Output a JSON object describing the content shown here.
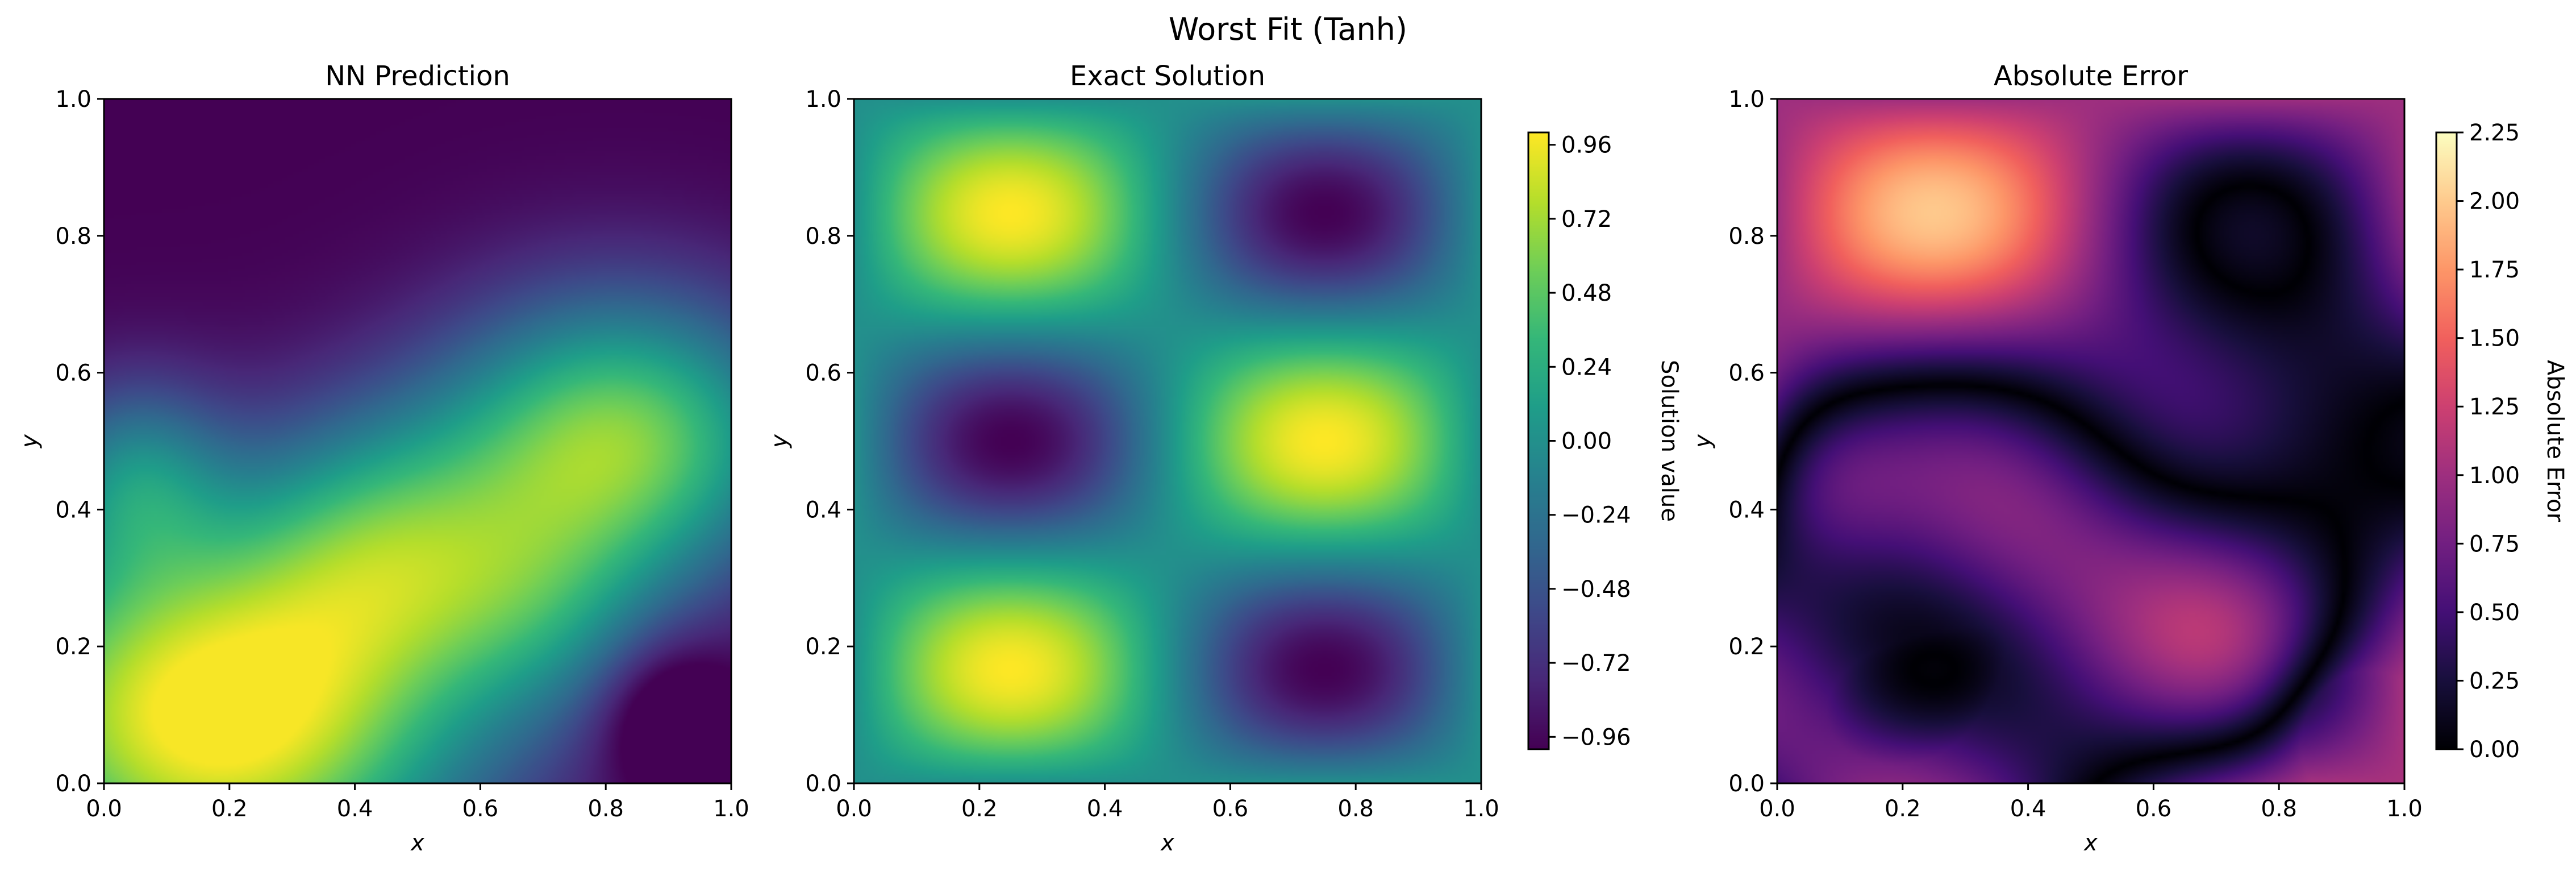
{
  "figure": {
    "title": "Worst Fit (Tanh)"
  },
  "chart_data": [
    {
      "type": "heatmap",
      "title": "NN Prediction",
      "xlabel": "x",
      "ylabel": "y",
      "xlim": [
        0,
        1
      ],
      "ylim": [
        0,
        1
      ],
      "x_ticks": [
        "0.0",
        "0.2",
        "0.4",
        "0.6",
        "0.8",
        "1.0"
      ],
      "y_ticks": [
        "0.0",
        "0.2",
        "0.4",
        "0.6",
        "0.8",
        "1.0"
      ],
      "colormap": "viridis",
      "value_range": [
        -0.96,
        0.96
      ],
      "features": [
        {
          "x": 0.2,
          "y": 0.12,
          "value": 0.96
        },
        {
          "x": 0.8,
          "y": 0.5,
          "value": 0.6
        },
        {
          "x": 0.4,
          "y": 0.85,
          "value": -1.0
        },
        {
          "x": 0.92,
          "y": 0.08,
          "value": -0.75
        }
      ]
    },
    {
      "type": "heatmap",
      "title": "Exact Solution",
      "xlabel": "x",
      "ylabel": "y",
      "xlim": [
        0,
        1
      ],
      "ylim": [
        0,
        1
      ],
      "x_ticks": [
        "0.0",
        "0.2",
        "0.4",
        "0.6",
        "0.8",
        "1.0"
      ],
      "y_ticks": [
        "0.0",
        "0.2",
        "0.4",
        "0.6",
        "0.8",
        "1.0"
      ],
      "colormap": "viridis",
      "function": "sin(2πx)·sin(3πy)",
      "value_range": [
        -1.0,
        1.0
      ],
      "colorbar": {
        "label": "Solution value",
        "ticks": [
          "0.96",
          "0.72",
          "0.48",
          "0.24",
          "0.00",
          "−0.24",
          "−0.48",
          "−0.72",
          "−0.96"
        ]
      }
    },
    {
      "type": "heatmap",
      "title": "Absolute Error",
      "xlabel": "x",
      "ylabel": "y",
      "xlim": [
        0,
        1
      ],
      "ylim": [
        0,
        1
      ],
      "x_ticks": [
        "0.0",
        "0.2",
        "0.4",
        "0.6",
        "0.8",
        "1.0"
      ],
      "y_ticks": [
        "0.0",
        "0.2",
        "0.4",
        "0.6",
        "0.8",
        "1.0"
      ],
      "colormap": "magma",
      "value_range": [
        0,
        2.25
      ],
      "colorbar": {
        "label": "Absolute Error",
        "ticks": [
          "2.25",
          "2.00",
          "1.75",
          "1.50",
          "1.25",
          "1.00",
          "0.75",
          "0.50",
          "0.25",
          "0.00"
        ]
      }
    }
  ]
}
